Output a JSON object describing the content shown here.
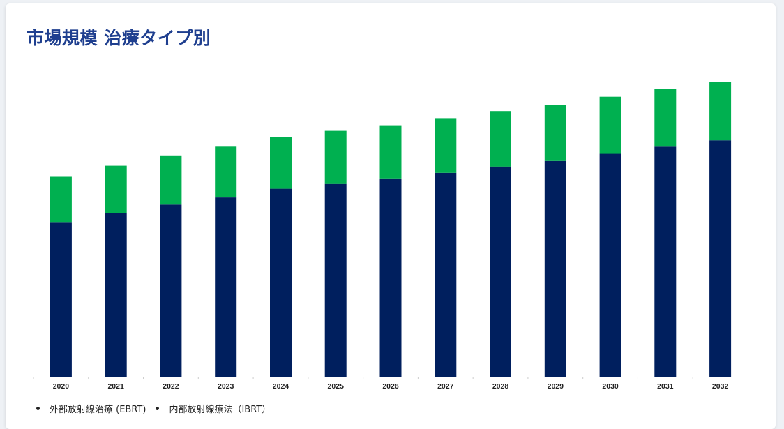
{
  "title": "市場規模  治療タイプ別",
  "colors": {
    "title": "#1f3f8f",
    "ebrt": "#001f5e",
    "ibrt": "#00b050",
    "axis": "#cccccc"
  },
  "legend": [
    {
      "label": "外部放射線治療 (EBRT)",
      "series": "ebrt"
    },
    {
      "label": "内部放射線療法（IBRT）",
      "series": "ibrt"
    }
  ],
  "chart_data": {
    "type": "bar",
    "stacked": true,
    "categories": [
      "2020",
      "2021",
      "2022",
      "2023",
      "2024",
      "2025",
      "2026",
      "2027",
      "2028",
      "2029",
      "2030",
      "2031",
      "2032"
    ],
    "series": [
      {
        "name": "外部放射線治療 (EBRT)",
        "key": "ebrt",
        "values": [
          195,
          206,
          217,
          226,
          237,
          243,
          250,
          257,
          265,
          272,
          281,
          290,
          298
        ]
      },
      {
        "name": "内部放射線療法（IBRT）",
        "key": "ibrt",
        "values": [
          57,
          60,
          62,
          64,
          65,
          67,
          67,
          69,
          70,
          71,
          72,
          73,
          74
        ]
      }
    ],
    "title": "",
    "xlabel": "",
    "ylabel": "",
    "ylim": [
      0,
      380
    ],
    "grid": false,
    "legend_position": "bottom-left"
  }
}
